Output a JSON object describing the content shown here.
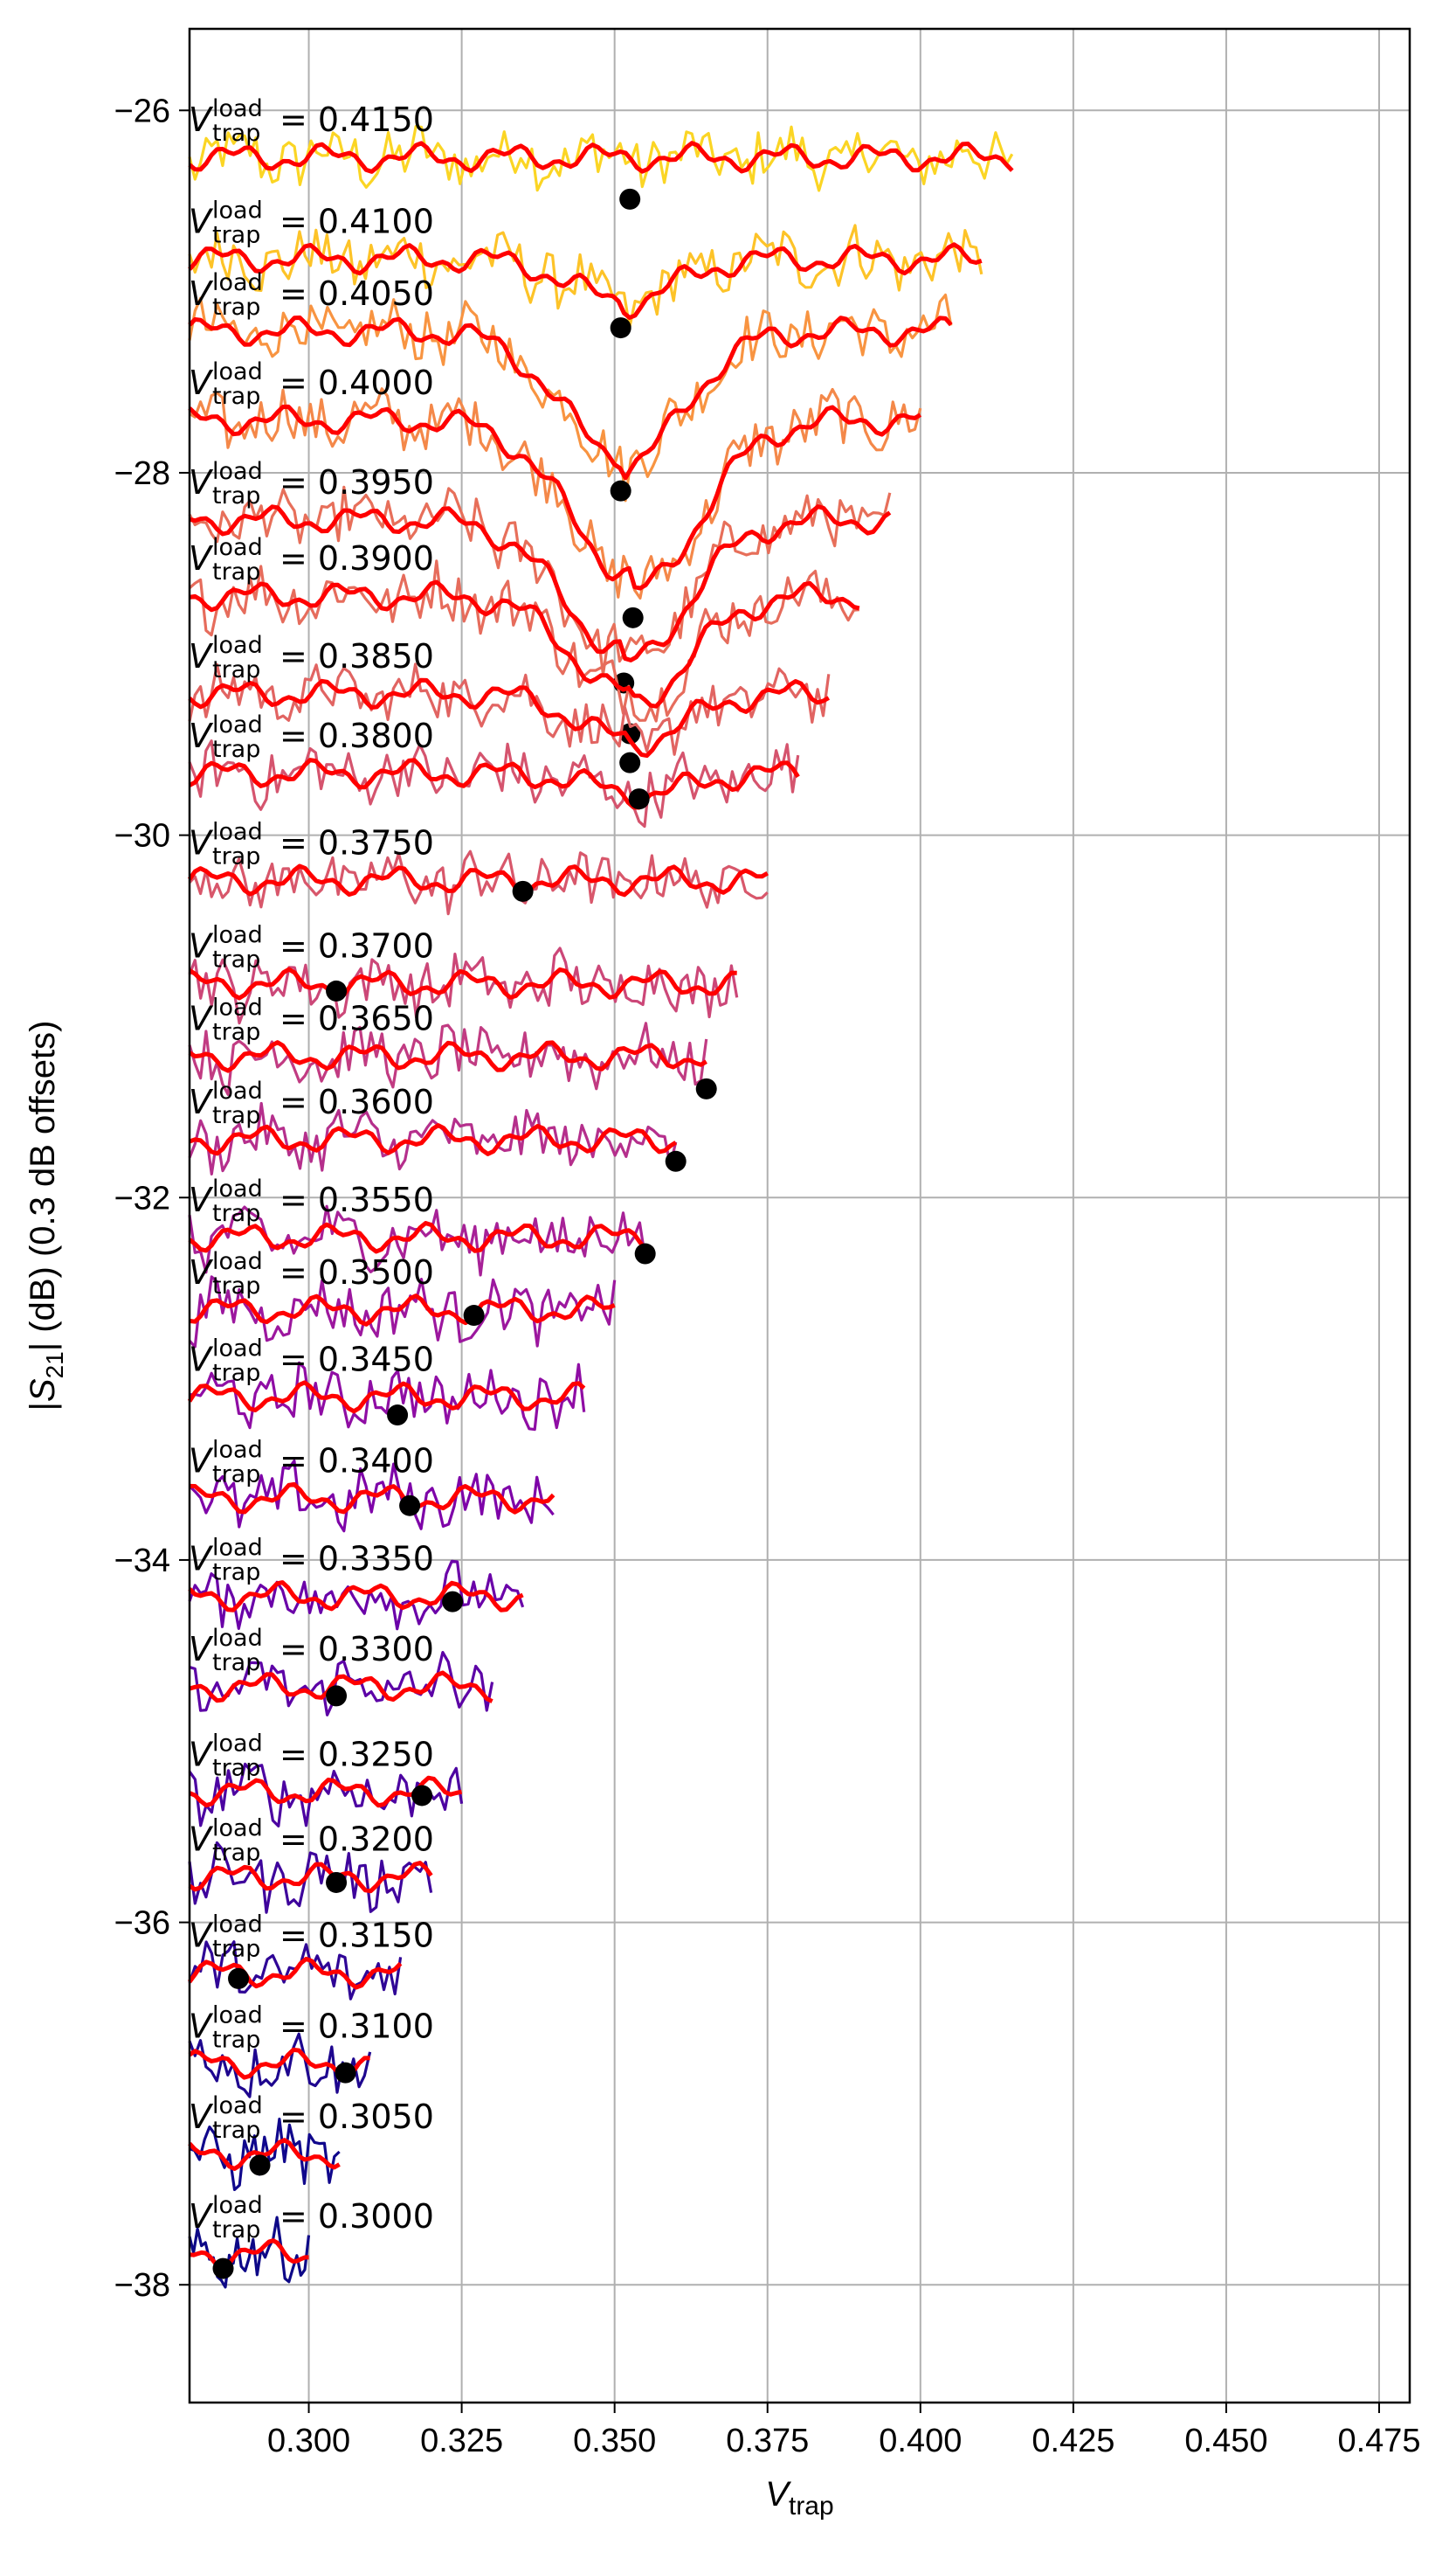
{
  "chart_data": {
    "type": "line",
    "xlabel": "V_trap",
    "ylabel": "|S21| (dB) (0.3 dB offsets)",
    "xlim": [
      0.2805,
      0.48
    ],
    "ylim": [
      -38.65,
      -25.55
    ],
    "xticks": [
      "0.300",
      "0.325",
      "0.350",
      "0.375",
      "0.400",
      "0.425",
      "0.450",
      "0.475"
    ],
    "xtick_values": [
      0.3,
      0.325,
      0.35,
      0.375,
      0.4,
      0.425,
      0.45,
      0.475
    ],
    "yticks": [
      "−26",
      "−28",
      "−30",
      "−32",
      "−34",
      "−36",
      "−38"
    ],
    "ytick_values": [
      -26,
      -28,
      -30,
      -32,
      -34,
      -36,
      -38
    ],
    "grid": true,
    "series": [
      {
        "load": "0.4150",
        "x_end": 0.415,
        "baseline": -26.26,
        "min_x": 0.3525,
        "min_y": -26.49,
        "dip": 0.0,
        "color": "#fbd524"
      },
      {
        "load": "0.4100",
        "x_end": 0.41,
        "baseline": -26.82,
        "min_x": 0.351,
        "min_y": -27.2,
        "dip": 0.25,
        "color": "#fdc328"
      },
      {
        "load": "0.4050",
        "x_end": 0.405,
        "baseline": -27.22,
        "min_x": 0.351,
        "min_y": -28.1,
        "dip": 0.75,
        "color": "#f89441"
      },
      {
        "load": "0.4000",
        "x_end": 0.4,
        "baseline": -27.71,
        "min_x": 0.353,
        "min_y": -28.8,
        "dip": 0.95,
        "color": "#f48849"
      },
      {
        "load": "0.3950",
        "x_end": 0.395,
        "baseline": -28.26,
        "min_x": 0.3515,
        "min_y": -29.16,
        "dip": 0.8,
        "color": "#e76f5a"
      },
      {
        "load": "0.3900",
        "x_end": 0.39,
        "baseline": -28.68,
        "min_x": 0.3525,
        "min_y": -29.44,
        "dip": 0.6,
        "color": "#e66c5c"
      },
      {
        "load": "0.3850",
        "x_end": 0.385,
        "baseline": -29.22,
        "min_x": 0.3525,
        "min_y": -29.6,
        "dip": 0.28,
        "color": "#e16462"
      },
      {
        "load": "0.3800",
        "x_end": 0.38,
        "baseline": -29.66,
        "min_x": 0.354,
        "min_y": -29.8,
        "dip": 0.12,
        "color": "#d5546e"
      },
      {
        "load": "0.3750",
        "x_end": 0.375,
        "baseline": -30.25,
        "min_x": 0.335,
        "min_y": -30.31,
        "dip": 0.0,
        "color": "#d8576b"
      },
      {
        "load": "0.3700",
        "x_end": 0.37,
        "baseline": -30.82,
        "min_x": 0.3045,
        "min_y": -30.86,
        "dip": 0.0,
        "color": "#cc4778"
      },
      {
        "load": "0.3650",
        "x_end": 0.365,
        "baseline": -31.22,
        "min_x": 0.365,
        "min_y": -31.4,
        "dip": 0.0,
        "color": "#c13b82"
      },
      {
        "load": "0.3600",
        "x_end": 0.36,
        "baseline": -31.68,
        "min_x": 0.36,
        "min_y": -31.8,
        "dip": 0.0,
        "color": "#b52f8c"
      },
      {
        "load": "0.3550",
        "x_end": 0.355,
        "baseline": -32.22,
        "min_x": 0.355,
        "min_y": -32.31,
        "dip": 0.0,
        "color": "#a72197"
      },
      {
        "load": "0.3500",
        "x_end": 0.35,
        "baseline": -32.62,
        "min_x": 0.327,
        "min_y": -32.65,
        "dip": 0.0,
        "color": "#9c179e"
      },
      {
        "load": "0.3450",
        "x_end": 0.345,
        "baseline": -33.1,
        "min_x": 0.3145,
        "min_y": -33.2,
        "dip": 0.0,
        "color": "#8f0da4"
      },
      {
        "load": "0.3400",
        "x_end": 0.34,
        "baseline": -33.66,
        "min_x": 0.3165,
        "min_y": -33.7,
        "dip": 0.0,
        "color": "#7e03a8"
      },
      {
        "load": "0.3350",
        "x_end": 0.335,
        "baseline": -34.2,
        "min_x": 0.3235,
        "min_y": -34.23,
        "dip": 0.0,
        "color": "#6a00a8"
      },
      {
        "load": "0.3300",
        "x_end": 0.33,
        "baseline": -34.7,
        "min_x": 0.3045,
        "min_y": -34.75,
        "dip": 0.0,
        "color": "#5c01a6"
      },
      {
        "load": "0.3250",
        "x_end": 0.325,
        "baseline": -35.28,
        "min_x": 0.3185,
        "min_y": -35.3,
        "dip": 0.0,
        "color": "#4c02a1"
      },
      {
        "load": "0.3200",
        "x_end": 0.32,
        "baseline": -35.75,
        "min_x": 0.3045,
        "min_y": -35.78,
        "dip": 0.0,
        "color": "#3e049c"
      },
      {
        "load": "0.3150",
        "x_end": 0.315,
        "baseline": -36.28,
        "min_x": 0.2885,
        "min_y": -36.31,
        "dip": 0.0,
        "color": "#2f0596"
      },
      {
        "load": "0.3100",
        "x_end": 0.31,
        "baseline": -36.78,
        "min_x": 0.306,
        "min_y": -36.83,
        "dip": 0.0,
        "color": "#1e068f"
      },
      {
        "load": "0.3050",
        "x_end": 0.305,
        "baseline": -37.28,
        "min_x": 0.292,
        "min_y": -37.34,
        "dip": 0.0,
        "color": "#10078c"
      },
      {
        "load": "0.3000",
        "x_end": 0.3,
        "baseline": -37.83,
        "min_x": 0.286,
        "min_y": -37.91,
        "dip": 0.0,
        "color": "#0d0887"
      }
    ],
    "fit_color": "#ff0000",
    "marker_color": "#000000",
    "curve_label_prefix": "= "
  }
}
